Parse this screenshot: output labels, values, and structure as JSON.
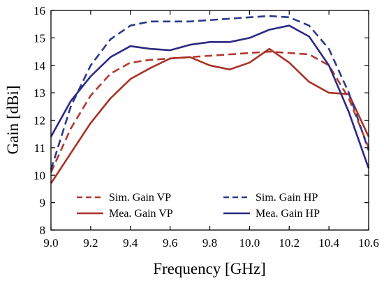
{
  "chart_data": {
    "type": "line",
    "title": "",
    "xlabel": "Frequency [GHz]",
    "ylabel": "Gain [dBi]",
    "xlim": [
      9.0,
      10.6
    ],
    "ylim": [
      8,
      16
    ],
    "xticks": [
      "9.0",
      "9.2",
      "9.4",
      "9.6",
      "9.8",
      "10.0",
      "10.2",
      "10.4",
      "10.6"
    ],
    "yticks": [
      "8",
      "9",
      "10",
      "11",
      "12",
      "13",
      "14",
      "15",
      "16"
    ],
    "grid": false,
    "legend_position": "bottom-center",
    "series": [
      {
        "name": "Sim. Gain VP",
        "color": "#b03a30",
        "dash": "dashed",
        "x": [
          9.0,
          9.1,
          9.2,
          9.3,
          9.4,
          9.5,
          9.6,
          9.7,
          9.8,
          9.9,
          10.0,
          10.1,
          10.2,
          10.3,
          10.4,
          10.5,
          10.6
        ],
        "y": [
          10.1,
          11.7,
          12.9,
          13.7,
          14.1,
          14.2,
          14.25,
          14.3,
          14.35,
          14.4,
          14.45,
          14.5,
          14.45,
          14.4,
          14.0,
          12.8,
          11.0
        ]
      },
      {
        "name": "Mea. Gain VP",
        "color": "#a83227",
        "dash": "solid",
        "x": [
          9.0,
          9.1,
          9.2,
          9.3,
          9.4,
          9.5,
          9.6,
          9.7,
          9.8,
          9.9,
          10.0,
          10.1,
          10.2,
          10.3,
          10.4,
          10.5,
          10.6
        ],
        "y": [
          9.7,
          10.8,
          11.9,
          12.8,
          13.5,
          13.9,
          14.25,
          14.3,
          14.0,
          13.85,
          14.1,
          14.6,
          14.1,
          13.4,
          13.0,
          12.95,
          11.4
        ]
      },
      {
        "name": "Sim. Gain HP",
        "color": "#2b3a8a",
        "dash": "dashed",
        "x": [
          9.0,
          9.1,
          9.2,
          9.3,
          9.4,
          9.5,
          9.6,
          9.7,
          9.8,
          9.9,
          10.0,
          10.1,
          10.2,
          10.3,
          10.4,
          10.5,
          10.6
        ],
        "y": [
          10.2,
          12.5,
          14.0,
          14.95,
          15.45,
          15.6,
          15.6,
          15.6,
          15.65,
          15.7,
          15.75,
          15.8,
          15.75,
          15.45,
          14.6,
          13.0,
          10.9
        ]
      },
      {
        "name": "Mea. Gain HP",
        "color": "#2c2a82",
        "dash": "solid",
        "x": [
          9.0,
          9.1,
          9.2,
          9.3,
          9.4,
          9.5,
          9.6,
          9.7,
          9.8,
          9.9,
          10.0,
          10.1,
          10.2,
          10.3,
          10.4,
          10.5,
          10.6
        ],
        "y": [
          11.4,
          12.7,
          13.6,
          14.3,
          14.7,
          14.6,
          14.55,
          14.75,
          14.85,
          14.85,
          15.0,
          15.3,
          15.45,
          15.05,
          14.0,
          12.3,
          10.25
        ]
      }
    ]
  }
}
